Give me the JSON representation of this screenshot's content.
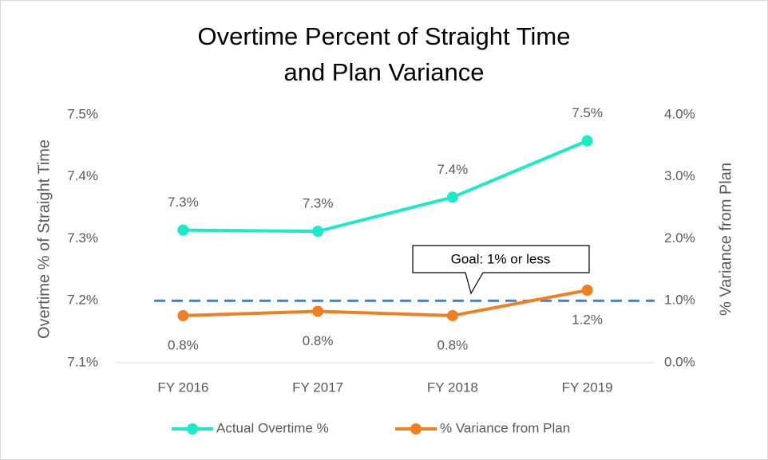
{
  "chart_data": {
    "type": "line",
    "title": [
      "Overtime Percent of Straight Time",
      "and Plan Variance"
    ],
    "ylabel": "Overtime % of Straight Time",
    "y2label": "% Variance from Plan",
    "categories": [
      "FY 2016",
      "FY 2017",
      "FY 2018",
      "FY 2019"
    ],
    "series": [
      {
        "name": "Actual Overtime %",
        "color": "#1de9c9",
        "axis": "y",
        "values": [
          7.314,
          7.312,
          7.367,
          7.458
        ],
        "value_labels": [
          "7.3%",
          "7.3%",
          "7.4%",
          "7.5%"
        ]
      },
      {
        "name": "% Variance from Plan",
        "color": "#f07f22",
        "axis": "y2",
        "values": [
          0.76,
          0.83,
          0.76,
          1.17
        ],
        "value_labels": [
          "0.8%",
          "0.8%",
          "0.8%",
          "1.2%"
        ]
      }
    ],
    "ylim": [
      7.1,
      7.5
    ],
    "yticks": [
      {
        "value": 7.1,
        "label": "7.1%"
      },
      {
        "value": 7.2,
        "label": "7.2%"
      },
      {
        "value": 7.3,
        "label": "7.3%"
      },
      {
        "value": 7.4,
        "label": "7.4%"
      },
      {
        "value": 7.5,
        "label": "7.5%"
      }
    ],
    "y2lim": [
      0,
      4
    ],
    "y2ticks": [
      {
        "value": 0,
        "label": "0.0%"
      },
      {
        "value": 1,
        "label": "1.0%"
      },
      {
        "value": 2,
        "label": "2.0%"
      },
      {
        "value": 3,
        "label": "3.0%"
      },
      {
        "value": 4,
        "label": "4.0%"
      }
    ],
    "reference_line": {
      "value": 1,
      "axis": "y2",
      "color": "#4a7ebb"
    },
    "annotation": "Goal: 1% or less",
    "legend": "bottom"
  }
}
